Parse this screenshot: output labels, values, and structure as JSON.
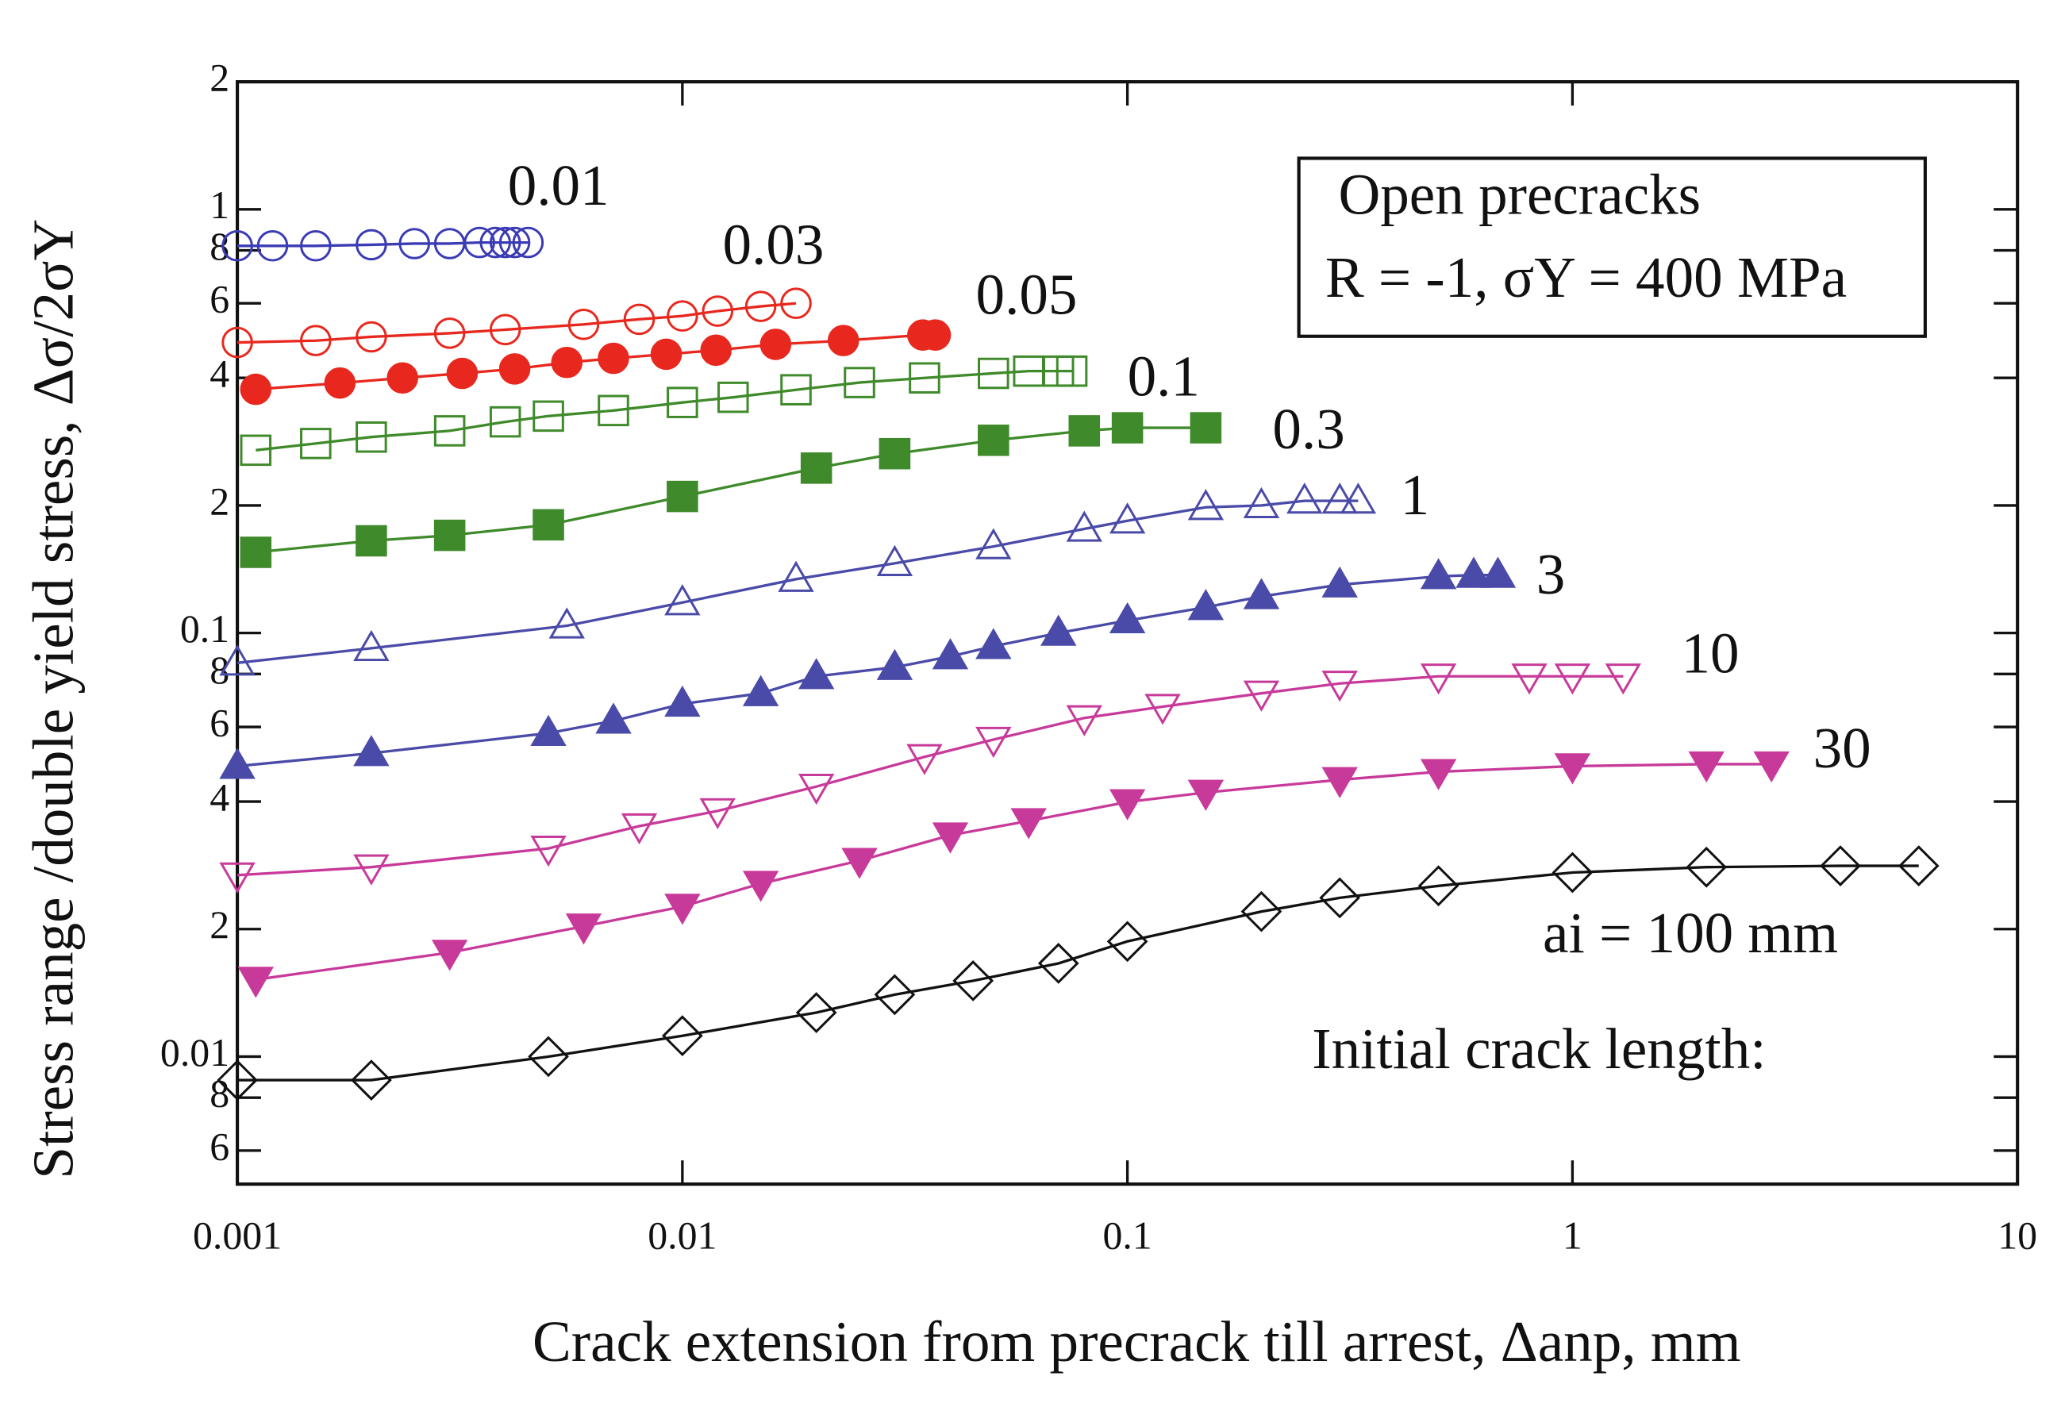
{
  "chart_data": {
    "type": "line",
    "x_label": "Crack extension from precrack till arrest, Δanp, mm",
    "y_label": "Stress range /double yield stress,  Δσ/2σY",
    "legend_box": [
      "Open precracks",
      "R = -1, σY = 400 MPa"
    ],
    "annotation": "Initial crack length:",
    "xscale": "log",
    "yscale": "log",
    "xlim": [
      0.001,
      10
    ],
    "ylim": [
      0.005,
      2
    ],
    "xticks": [
      0.001,
      0.01,
      0.1,
      1,
      10
    ],
    "yticks": [
      {
        "value": 0.006,
        "label": "6"
      },
      {
        "value": 0.008,
        "label": "8"
      },
      0.01,
      {
        "value": 0.02,
        "label": "2"
      },
      {
        "value": 0.04,
        "label": "4"
      },
      {
        "value": 0.06,
        "label": "6"
      },
      {
        "value": 0.08,
        "label": "8"
      },
      0.1,
      {
        "value": 0.2,
        "label": "2"
      },
      {
        "value": 0.4,
        "label": "4"
      },
      {
        "value": 0.6,
        "label": "6"
      },
      {
        "value": 0.8,
        "label": "8"
      },
      1,
      2
    ],
    "series": [
      {
        "name": "0.01",
        "color": "#3b3bb5",
        "marker": "circle",
        "filled": false,
        "x": [
          0.001,
          0.0012,
          0.0015,
          0.002,
          0.0025,
          0.003,
          0.0035,
          0.0038,
          0.004,
          0.0042,
          0.0045
        ],
        "values": [
          0.82,
          0.82,
          0.82,
          0.825,
          0.83,
          0.83,
          0.835,
          0.835,
          0.835,
          0.835,
          0.835
        ]
      },
      {
        "name": "0.03",
        "color": "#e8281e",
        "marker": "circle",
        "filled": false,
        "x": [
          0.001,
          0.0015,
          0.002,
          0.003,
          0.004,
          0.006,
          0.008,
          0.01,
          0.012,
          0.015,
          0.018
        ],
        "values": [
          0.485,
          0.49,
          0.5,
          0.51,
          0.52,
          0.535,
          0.55,
          0.56,
          0.575,
          0.59,
          0.6
        ]
      },
      {
        "name": "0.05",
        "color": "#e8281e",
        "marker": "circle",
        "filled": true,
        "x": [
          0.0011,
          0.0017,
          0.00235,
          0.0032,
          0.0042,
          0.0055,
          0.007,
          0.0092,
          0.0119,
          0.0162,
          0.023,
          0.0347,
          0.037
        ],
        "values": [
          0.376,
          0.389,
          0.4,
          0.41,
          0.42,
          0.435,
          0.445,
          0.455,
          0.465,
          0.48,
          0.49,
          0.505,
          0.505
        ]
      },
      {
        "name": "0.1",
        "color": "#3f8a2a",
        "marker": "square",
        "filled": false,
        "x": [
          0.0011,
          0.0015,
          0.002,
          0.003,
          0.004,
          0.005,
          0.007,
          0.01,
          0.013,
          0.018,
          0.025,
          0.035,
          0.05,
          0.06,
          0.07,
          0.075
        ],
        "values": [
          0.27,
          0.28,
          0.29,
          0.3,
          0.315,
          0.325,
          0.335,
          0.35,
          0.36,
          0.375,
          0.39,
          0.4,
          0.41,
          0.415,
          0.415,
          0.415
        ]
      },
      {
        "name": "0.3",
        "color": "#3f8a2a",
        "marker": "square",
        "filled": true,
        "x": [
          0.0011,
          0.002,
          0.003,
          0.005,
          0.01,
          0.02,
          0.03,
          0.05,
          0.08,
          0.1,
          0.15
        ],
        "values": [
          0.155,
          0.165,
          0.17,
          0.18,
          0.21,
          0.245,
          0.265,
          0.285,
          0.3,
          0.305,
          0.305
        ]
      },
      {
        "name": "1",
        "color": "#4a4aa8",
        "marker": "triangle-up",
        "filled": false,
        "x": [
          0.001,
          0.002,
          0.0055,
          0.01,
          0.018,
          0.03,
          0.05,
          0.08,
          0.1,
          0.15,
          0.2,
          0.25,
          0.3,
          0.33
        ],
        "values": [
          0.085,
          0.092,
          0.104,
          0.118,
          0.134,
          0.146,
          0.16,
          0.176,
          0.184,
          0.198,
          0.2,
          0.205,
          0.205,
          0.205
        ]
      },
      {
        "name": "3",
        "color": "#4a4aa8",
        "marker": "triangle-up",
        "filled": true,
        "x": [
          0.001,
          0.002,
          0.005,
          0.007,
          0.01,
          0.015,
          0.02,
          0.03,
          0.04,
          0.05,
          0.07,
          0.1,
          0.15,
          0.2,
          0.3,
          0.5,
          0.6,
          0.68
        ],
        "values": [
          0.0485,
          0.052,
          0.058,
          0.062,
          0.068,
          0.072,
          0.079,
          0.083,
          0.088,
          0.093,
          0.1,
          0.107,
          0.115,
          0.122,
          0.13,
          0.136,
          0.137,
          0.137
        ]
      },
      {
        "name": "10",
        "color": "#c83a9a",
        "marker": "triangle-down",
        "filled": false,
        "x": [
          0.001,
          0.002,
          0.005,
          0.008,
          0.012,
          0.02,
          0.035,
          0.05,
          0.08,
          0.12,
          0.2,
          0.3,
          0.5,
          0.8,
          1.0,
          1.3
        ],
        "values": [
          0.0268,
          0.028,
          0.031,
          0.035,
          0.038,
          0.0434,
          0.051,
          0.056,
          0.063,
          0.067,
          0.072,
          0.076,
          0.079,
          0.079,
          0.079,
          0.079
        ]
      },
      {
        "name": "30",
        "color": "#c83a9a",
        "marker": "triangle-down",
        "filled": true,
        "x": [
          0.0011,
          0.003,
          0.006,
          0.01,
          0.015,
          0.025,
          0.04,
          0.06,
          0.1,
          0.15,
          0.3,
          0.5,
          1,
          2,
          2.8
        ],
        "values": [
          0.0152,
          0.0176,
          0.0203,
          0.0226,
          0.0256,
          0.029,
          0.0333,
          0.036,
          0.0399,
          0.042,
          0.045,
          0.047,
          0.0485,
          0.049,
          0.049
        ]
      },
      {
        "name": "ai = 100 mm",
        "color": "#111111",
        "marker": "diamond",
        "filled": false,
        "x": [
          0.001,
          0.002,
          0.005,
          0.01,
          0.02,
          0.03,
          0.045,
          0.07,
          0.1,
          0.2,
          0.3,
          0.5,
          1,
          2,
          4,
          6
        ],
        "values": [
          0.0088,
          0.0088,
          0.01,
          0.0112,
          0.0127,
          0.014,
          0.0151,
          0.0166,
          0.0187,
          0.022,
          0.0237,
          0.0253,
          0.0272,
          0.028,
          0.0282,
          0.0282
        ]
      }
    ]
  }
}
